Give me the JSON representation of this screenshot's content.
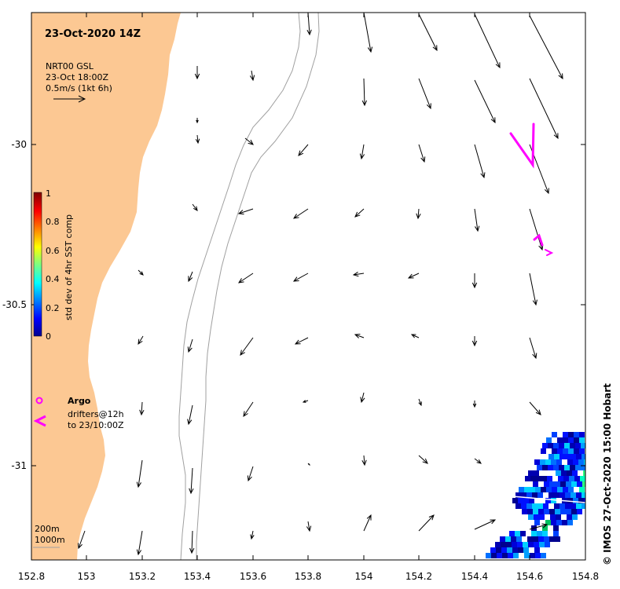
{
  "map": {
    "title": "23-Oct-2020 14Z",
    "wind_label": {
      "line1": "NRT00 GSL",
      "line2": "23-Oct 18:00Z",
      "line3": "0.5m/s (1kt 6h)"
    },
    "colorbar": {
      "label": "std dev of 4hr SST comp",
      "ticks": [
        "1",
        "0.8",
        "0.6",
        "0.4",
        "0.2",
        "0"
      ]
    },
    "legend": {
      "argo": "Argo",
      "drifters_line1": "drifters@12h",
      "drifters_line2": "to 23/10:00Z"
    },
    "isobaths": {
      "line1": "200m",
      "line2": "1000m"
    },
    "x_ticks": [
      "152.8",
      "153",
      "153.2",
      "153.4",
      "153.6",
      "153.8",
      "154",
      "154.2",
      "154.4",
      "154.6",
      "154.8"
    ],
    "y_ticks": [
      "-30",
      "-30.5",
      "-31"
    ],
    "credit": "© IMOS 27-Oct-2020 15:00 Hobart",
    "colors": {
      "land": "#FCC893",
      "isobath": "#a0a0a0",
      "drifter": "#ff00ff",
      "arrow": "#000000"
    }
  }
}
